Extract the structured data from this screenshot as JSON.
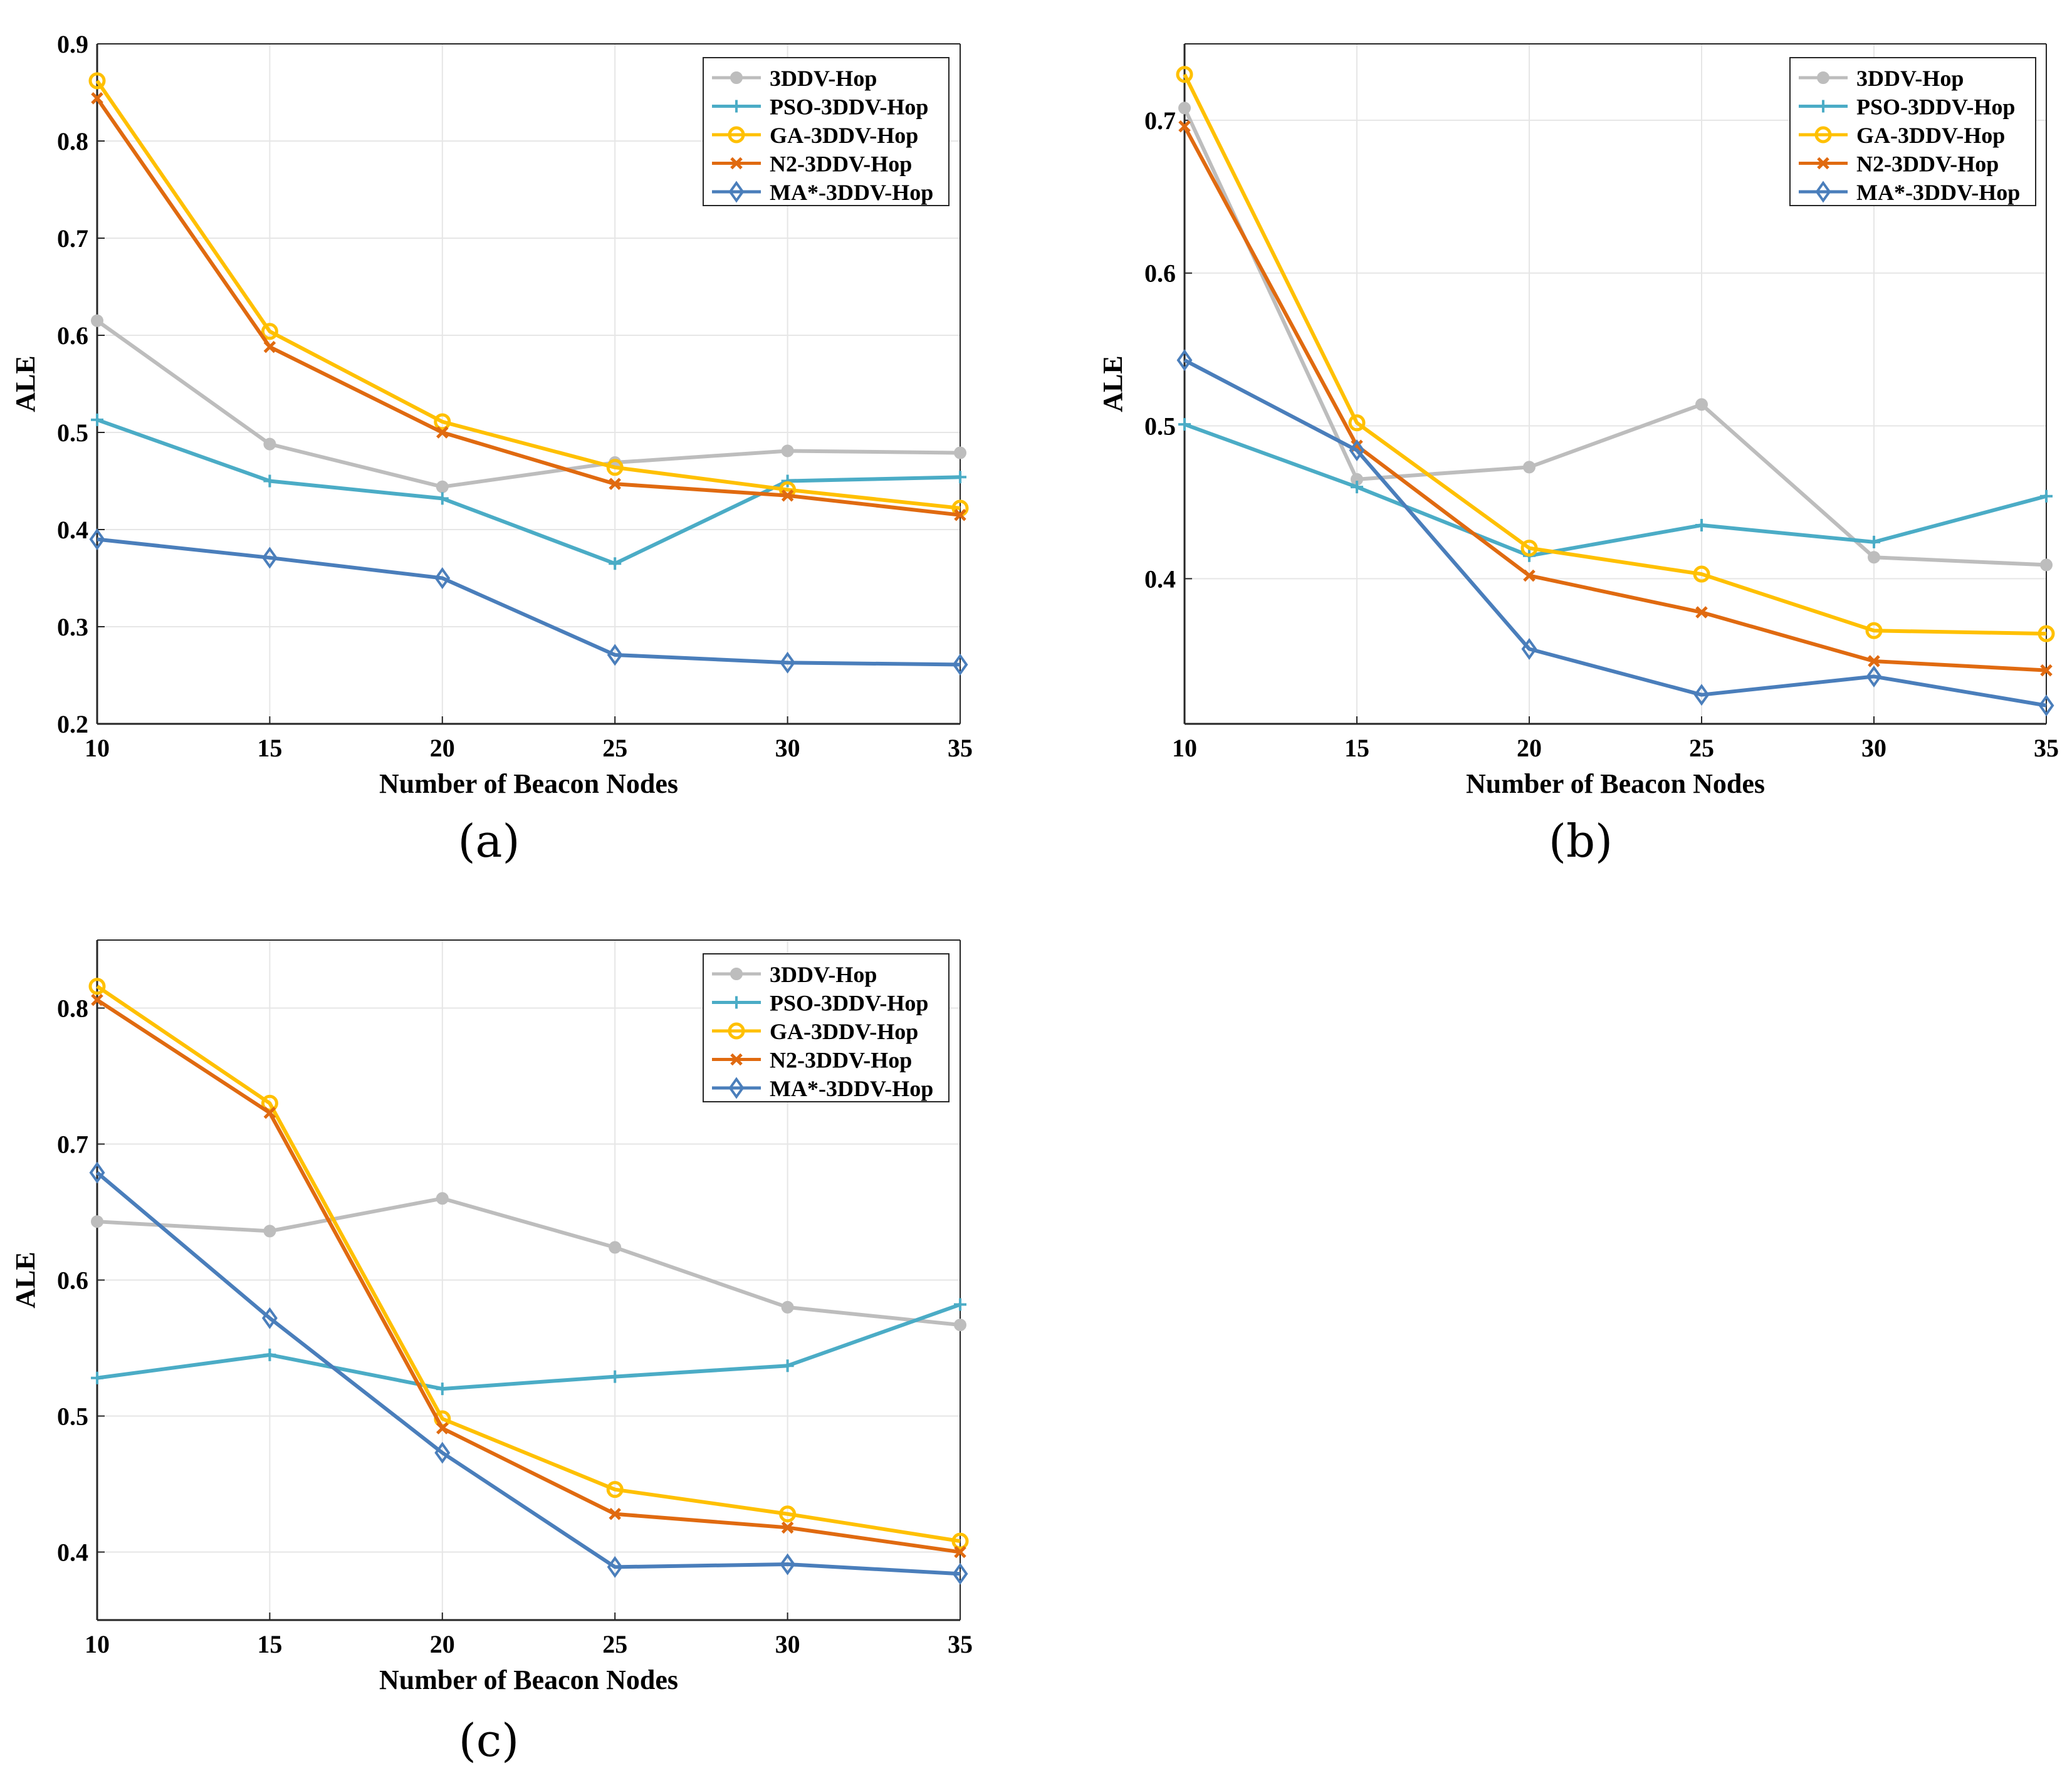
{
  "colors": {
    "3DDV-Hop": "#bdbdbd",
    "PSO-3DDV-Hop": "#4bacc6",
    "GA-3DDV-Hop": "#ffc000",
    "N2-3DDV-Hop": "#e06a10",
    "MA*-3DDV-Hop": "#4a7ebb",
    "grid": "#e6e6e6",
    "axis": "#262626"
  },
  "markers": {
    "3DDV-Hop": "dot",
    "PSO-3DDV-Hop": "plus",
    "GA-3DDV-Hop": "circle",
    "N2-3DDV-Hop": "cross",
    "MA*-3DDV-Hop": "diamond"
  },
  "chart_data": [
    {
      "type": "line",
      "caption": "(a)",
      "xlabel": "Number of Beacon Nodes",
      "ylabel": "ALE",
      "x": [
        10,
        15,
        20,
        25,
        30,
        35
      ],
      "xlim": [
        10,
        35
      ],
      "ylim": [
        0.2,
        0.9
      ],
      "yticks": [
        0.2,
        0.3,
        0.4,
        0.5,
        0.6,
        0.7,
        0.8,
        0.9
      ],
      "yticklabels": [
        "0.2",
        "0.3",
        "0.4",
        "0.5",
        "0.6",
        "0.7",
        "0.8",
        "0.9"
      ],
      "xticklabels": [
        "10",
        "15",
        "20",
        "25",
        "30",
        "35"
      ],
      "grid": true,
      "legend": "top-right",
      "series": [
        {
          "name": "3DDV-Hop",
          "values": [
            0.615,
            0.488,
            0.444,
            0.469,
            0.481,
            0.479
          ]
        },
        {
          "name": "PSO-3DDV-Hop",
          "values": [
            0.513,
            0.45,
            0.432,
            0.365,
            0.45,
            0.454
          ]
        },
        {
          "name": "GA-3DDV-Hop",
          "values": [
            0.862,
            0.604,
            0.511,
            0.464,
            0.441,
            0.422
          ]
        },
        {
          "name": "N2-3DDV-Hop",
          "values": [
            0.844,
            0.588,
            0.5,
            0.447,
            0.435,
            0.415
          ]
        },
        {
          "name": "MA*-3DDV-Hop",
          "values": [
            0.39,
            0.371,
            0.35,
            0.271,
            0.263,
            0.261
          ]
        }
      ]
    },
    {
      "type": "line",
      "caption": "(b)",
      "xlabel": "Number of Beacon Nodes",
      "ylabel": "ALE",
      "x": [
        10,
        15,
        20,
        25,
        30,
        35
      ],
      "xlim": [
        10,
        35
      ],
      "ylim": [
        0.305,
        0.75
      ],
      "yticks": [
        0.4,
        0.5,
        0.6,
        0.7
      ],
      "yticklabels": [
        "0.4",
        "0.5",
        "0.6",
        "0.7"
      ],
      "xticklabels": [
        "10",
        "15",
        "20",
        "25",
        "30",
        "35"
      ],
      "grid": true,
      "legend": "top-right",
      "series": [
        {
          "name": "3DDV-Hop",
          "values": [
            0.708,
            0.465,
            0.473,
            0.514,
            0.414,
            0.409
          ]
        },
        {
          "name": "PSO-3DDV-Hop",
          "values": [
            0.501,
            0.46,
            0.415,
            0.435,
            0.424,
            0.454
          ]
        },
        {
          "name": "GA-3DDV-Hop",
          "values": [
            0.73,
            0.502,
            0.42,
            0.403,
            0.366,
            0.364
          ]
        },
        {
          "name": "N2-3DDV-Hop",
          "values": [
            0.696,
            0.487,
            0.402,
            0.378,
            0.346,
            0.34
          ]
        },
        {
          "name": "MA*-3DDV-Hop",
          "values": [
            0.543,
            0.484,
            0.354,
            0.324,
            0.336,
            0.317
          ]
        }
      ]
    },
    {
      "type": "line",
      "caption": "(c)",
      "xlabel": "Number of Beacon Nodes",
      "ylabel": "ALE",
      "x": [
        10,
        15,
        20,
        25,
        30,
        35
      ],
      "xlim": [
        10,
        35
      ],
      "ylim": [
        0.35,
        0.85
      ],
      "yticks": [
        0.4,
        0.5,
        0.6,
        0.7,
        0.8
      ],
      "yticklabels": [
        "0.4",
        "0.5",
        "0.6",
        "0.7",
        "0.8"
      ],
      "xticklabels": [
        "10",
        "15",
        "20",
        "25",
        "30",
        "35"
      ],
      "grid": true,
      "legend": "top-right",
      "series": [
        {
          "name": "3DDV-Hop",
          "values": [
            0.643,
            0.636,
            0.66,
            0.624,
            0.58,
            0.567
          ]
        },
        {
          "name": "PSO-3DDV-Hop",
          "values": [
            0.528,
            0.545,
            0.52,
            0.529,
            0.537,
            0.582
          ]
        },
        {
          "name": "GA-3DDV-Hop",
          "values": [
            0.816,
            0.73,
            0.498,
            0.446,
            0.428,
            0.408
          ]
        },
        {
          "name": "N2-3DDV-Hop",
          "values": [
            0.806,
            0.723,
            0.491,
            0.428,
            0.418,
            0.4
          ]
        },
        {
          "name": "MA*-3DDV-Hop",
          "values": [
            0.679,
            0.572,
            0.473,
            0.389,
            0.391,
            0.384
          ]
        }
      ]
    }
  ]
}
